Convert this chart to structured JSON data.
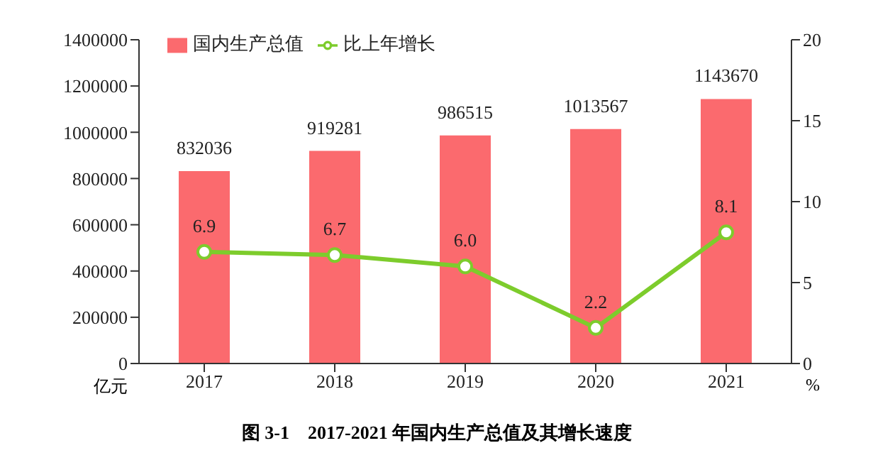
{
  "chart_data": {
    "type": "bar",
    "title": "图 3-1　2017-2021 年国内生产总值及其增长速度",
    "categories": [
      "2017",
      "2018",
      "2019",
      "2020",
      "2021"
    ],
    "series": [
      {
        "name": "国内生产总值",
        "color": "#fb6a6e",
        "values": [
          832036,
          919281,
          986515,
          1013567,
          1143670
        ]
      },
      {
        "name": "比上年增长",
        "type": "line",
        "axis": "y2",
        "color": "#7dcc2c",
        "values": [
          6.9,
          6.7,
          6.0,
          2.2,
          8.1
        ],
        "value_labels": [
          "6.9",
          "6.7",
          "6.0",
          "2.2",
          "8.1"
        ]
      }
    ],
    "ylabel": "亿元",
    "y2label": "%",
    "ylim": [
      0,
      1400000
    ],
    "yticks": [
      0,
      200000,
      400000,
      600000,
      800000,
      1000000,
      1200000,
      1400000
    ],
    "y2lim": [
      0,
      20
    ],
    "y2ticks": [
      0,
      5,
      10,
      15,
      20
    ],
    "data_labels": true,
    "legend": "top left",
    "marker": "circle"
  }
}
